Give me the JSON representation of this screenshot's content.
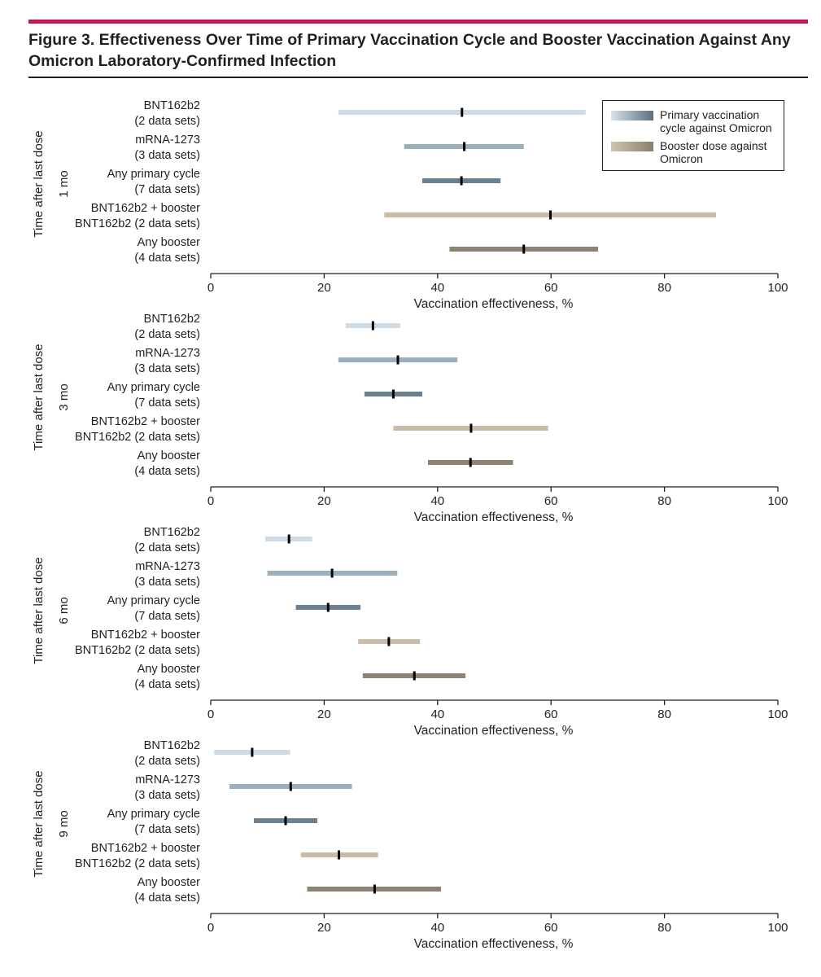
{
  "figure": {
    "title": "Figure 3. Effectiveness Over Time of Primary Vaccination Cycle and Booster Vaccination Against Any Omicron Laboratory-Confirmed Infection"
  },
  "legend": {
    "items": [
      {
        "label": "Primary vaccination cycle against Omicron",
        "gradient_from": "#d8e2ea",
        "gradient_to": "#5a7080"
      },
      {
        "label": "Booster dose against Omicron",
        "gradient_from": "#cfc4b3",
        "gradient_to": "#8b7e6f"
      }
    ]
  },
  "chart_data": {
    "type": "forest",
    "y_axis_label": "Time after last dose",
    "xlabel": "Vaccination effectiveness, %",
    "xlim": [
      0,
      100
    ],
    "x_ticks": [
      0,
      20,
      40,
      60,
      80,
      100
    ],
    "grid": false,
    "legend_position": "top-right",
    "series_colors": {
      "BNT162b2": "#cfdbe4",
      "mRNA-1273": "#9bb0bd",
      "Any primary cycle": "#6b8190",
      "BNT162b2 + booster BNT162b2": "#c9bda9",
      "Any booster": "#8e8273"
    },
    "panels": [
      {
        "period": "1 mo",
        "rows": [
          {
            "line1": "BNT162b2",
            "line2": "(2 data sets)",
            "estimate": 44.3,
            "lower": 22.5,
            "upper": 66.1
          },
          {
            "line1": "mRNA-1273",
            "line2": "(3 data sets)",
            "estimate": 44.7,
            "lower": 34.1,
            "upper": 55.2
          },
          {
            "line1": "Any primary cycle",
            "line2": "(7 data sets)",
            "estimate": 44.2,
            "lower": 37.3,
            "upper": 51.1
          },
          {
            "line1": "BNT162b2 + booster",
            "line2": "BNT162b2 (2 data sets)",
            "estimate": 59.9,
            "lower": 30.6,
            "upper": 89.1
          },
          {
            "line1": "Any booster",
            "line2": "(4 data sets)",
            "estimate": 55.2,
            "lower": 42.1,
            "upper": 68.3
          }
        ]
      },
      {
        "period": "3 mo",
        "rows": [
          {
            "line1": "BNT162b2",
            "line2": "(2 data sets)",
            "estimate": 28.6,
            "lower": 23.8,
            "upper": 33.4
          },
          {
            "line1": "mRNA-1273",
            "line2": "(3 data sets)",
            "estimate": 33.0,
            "lower": 22.5,
            "upper": 43.5
          },
          {
            "line1": "Any primary cycle",
            "line2": "(7 data sets)",
            "estimate": 32.2,
            "lower": 27.1,
            "upper": 37.3
          },
          {
            "line1": "BNT162b2 + booster",
            "line2": "BNT162b2 (2 data sets)",
            "estimate": 45.9,
            "lower": 32.2,
            "upper": 59.5
          },
          {
            "line1": "Any booster",
            "line2": "(4 data sets)",
            "estimate": 45.8,
            "lower": 38.3,
            "upper": 53.3
          }
        ]
      },
      {
        "period": "6 mo",
        "rows": [
          {
            "line1": "BNT162b2",
            "line2": "(2 data sets)",
            "estimate": 13.8,
            "lower": 9.6,
            "upper": 17.9
          },
          {
            "line1": "mRNA-1273",
            "line2": "(3 data sets)",
            "estimate": 21.4,
            "lower": 10.0,
            "upper": 32.9
          },
          {
            "line1": "Any primary cycle",
            "line2": "(7 data sets)",
            "estimate": 20.7,
            "lower": 15.0,
            "upper": 26.4
          },
          {
            "line1": "BNT162b2 + booster",
            "line2": "BNT162b2 (2 data sets)",
            "estimate": 31.4,
            "lower": 26.0,
            "upper": 36.9
          },
          {
            "line1": "Any booster",
            "line2": "(4 data sets)",
            "estimate": 35.9,
            "lower": 26.8,
            "upper": 44.9
          }
        ]
      },
      {
        "period": "9 mo",
        "rows": [
          {
            "line1": "BNT162b2",
            "line2": "(2 data sets)",
            "estimate": 7.3,
            "lower": 0.6,
            "upper": 14.0
          },
          {
            "line1": "mRNA-1273",
            "line2": "(3 data sets)",
            "estimate": 14.1,
            "lower": 3.3,
            "upper": 24.9
          },
          {
            "line1": "Any primary cycle",
            "line2": "(7 data sets)",
            "estimate": 13.2,
            "lower": 7.6,
            "upper": 18.8
          },
          {
            "line1": "BNT162b2 + booster",
            "line2": "BNT162b2 (2 data sets)",
            "estimate": 22.6,
            "lower": 15.9,
            "upper": 29.5
          },
          {
            "line1": "Any booster",
            "line2": "(4 data sets)",
            "estimate": 28.9,
            "lower": 17.0,
            "upper": 40.6
          }
        ]
      }
    ]
  }
}
